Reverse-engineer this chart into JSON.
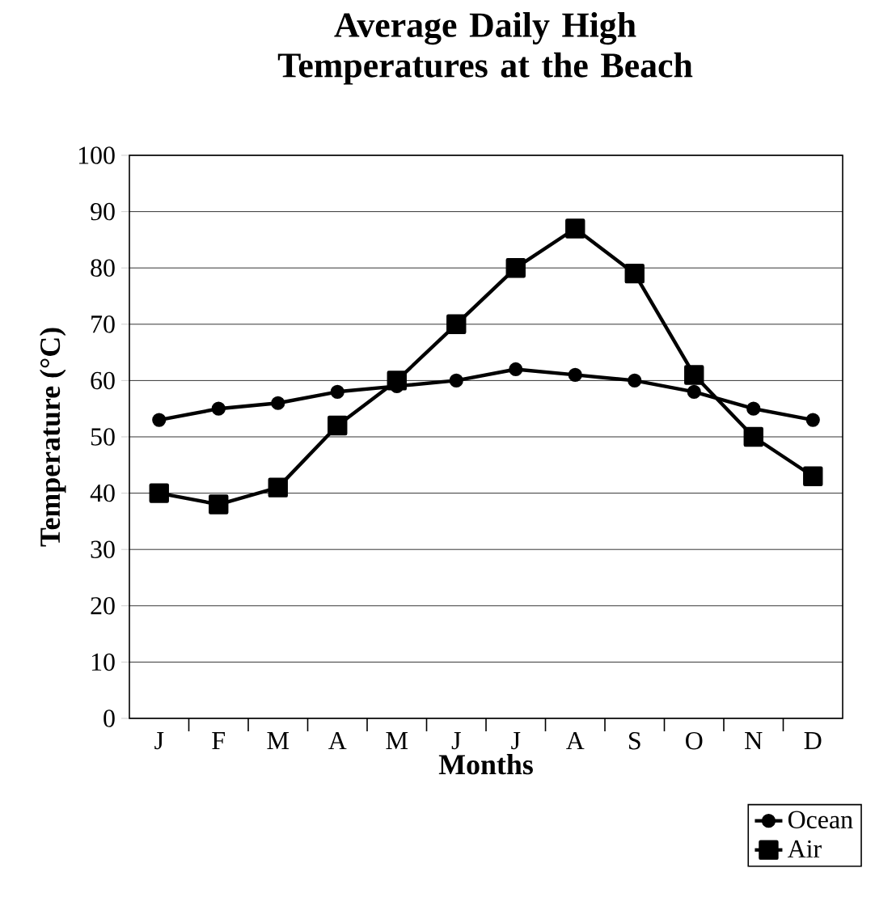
{
  "chart_data": {
    "type": "line",
    "title": "Average Daily High Temperatures at the Beach",
    "xlabel": "Months",
    "ylabel": "Temperature (°C)",
    "categories": [
      "J",
      "F",
      "M",
      "A",
      "M",
      "J",
      "J",
      "A",
      "S",
      "O",
      "N",
      "D"
    ],
    "series": [
      {
        "name": "Ocean",
        "color": "#000000",
        "marker": "circle",
        "values": [
          53,
          55,
          56,
          58,
          59,
          60,
          62,
          61,
          60,
          58,
          55,
          53
        ]
      },
      {
        "name": "Air",
        "color": "#000000",
        "marker": "square",
        "values": [
          40,
          38,
          41,
          52,
          60,
          70,
          80,
          87,
          79,
          61,
          50,
          43
        ]
      }
    ],
    "ylim": [
      0,
      100
    ],
    "yticks": [
      0,
      10,
      20,
      30,
      40,
      50,
      60,
      70,
      80,
      90,
      100
    ],
    "grid": "y",
    "legend": "bottom right",
    "line_style": "solid"
  }
}
